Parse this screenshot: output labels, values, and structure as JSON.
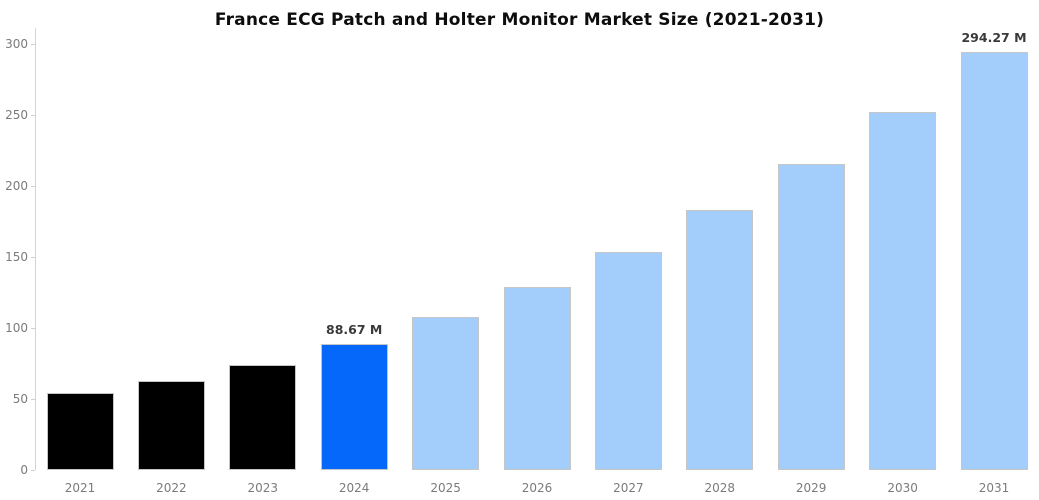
{
  "chart_data": {
    "type": "bar",
    "title": "France ECG Patch and Holter Monitor Market Size (2021-2031)",
    "xlabel": "",
    "ylabel": "",
    "categories": [
      "2021",
      "2022",
      "2023",
      "2024",
      "2025",
      "2026",
      "2027",
      "2028",
      "2029",
      "2030",
      "2031"
    ],
    "values": [
      54.2,
      62.4,
      74.1,
      88.67,
      107.7,
      129.2,
      153.6,
      183.0,
      215.3,
      252.1,
      294.27
    ],
    "unit": "M",
    "value_labels": [
      "",
      "",
      "",
      "88.67 M",
      "",
      "",
      "",
      "",
      "",
      "",
      "294.27 M"
    ],
    "bar_colors": [
      "#000000",
      "#000000",
      "#000000",
      "#0568fa",
      "#a3cdfa",
      "#a3cdfa",
      "#a3cdfa",
      "#a3cdfa",
      "#a3cdfa",
      "#a3cdfa",
      "#a3cdfa"
    ],
    "ylim": [
      0,
      300
    ],
    "yticks": [
      0,
      50,
      100,
      150,
      200,
      250,
      300
    ],
    "grid": false,
    "legend": "none",
    "colors": {
      "historical_bar": "#000000",
      "highlight_bar": "#0568fa",
      "forecast_bar": "#a3cdfa",
      "axis_label": "#7b7b7b",
      "axis_line": "#d4d4d4",
      "value_label": "#3a3a3a",
      "title": "#0d0d0d",
      "background": "#ffffff"
    }
  }
}
